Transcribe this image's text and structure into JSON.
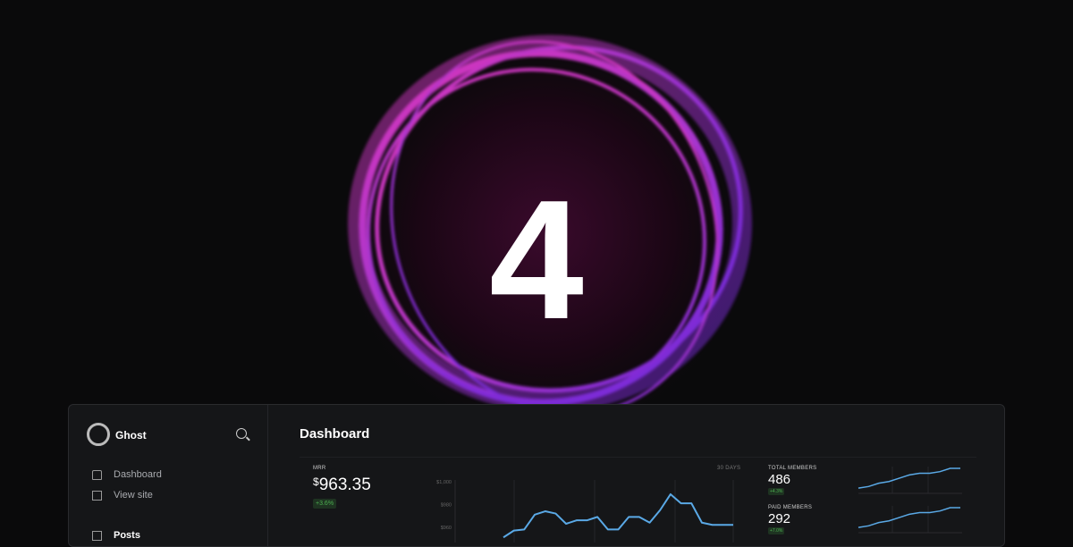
{
  "hero": {
    "number": "4",
    "ring_colors": [
      "#ff3fd8",
      "#c23cf0",
      "#7a2cff"
    ]
  },
  "sidebar": {
    "brand": "Ghost",
    "items": [
      {
        "label": "Dashboard",
        "icon": "home-icon"
      },
      {
        "label": "View site",
        "icon": "layout-icon"
      },
      {
        "label": "Posts",
        "icon": "pen-icon"
      }
    ]
  },
  "main": {
    "title": "Dashboard",
    "mrr": {
      "label": "MRR",
      "currency": "$",
      "value": "963.35",
      "change": "+3.6%",
      "range": "30 DAYS"
    },
    "total_members": {
      "label": "TOTAL MEMBERS",
      "value": "486",
      "change": "+4.3%"
    },
    "paid_members": {
      "label": "PAID MEMBERS",
      "value": "292",
      "change": "+7.0%"
    }
  },
  "chart_data": [
    {
      "type": "line",
      "yticks": [
        "$1,000",
        "$980",
        "$960"
      ],
      "ylim": [
        940,
        1000
      ],
      "color": "#5aa9e6",
      "values": [
        951,
        957,
        958,
        971,
        974,
        972,
        963,
        966,
        966,
        969,
        958,
        958,
        969,
        969,
        964,
        975,
        989,
        981,
        981,
        964,
        962,
        962,
        962
      ]
    },
    {
      "type": "line",
      "color": "#5aa9e6",
      "values": [
        1,
        2,
        4,
        5,
        7,
        9,
        10,
        10,
        11,
        13,
        13
      ]
    },
    {
      "type": "line",
      "color": "#5aa9e6",
      "values": [
        1,
        2,
        4,
        5,
        7,
        9,
        10,
        10,
        11,
        13,
        13
      ]
    }
  ]
}
